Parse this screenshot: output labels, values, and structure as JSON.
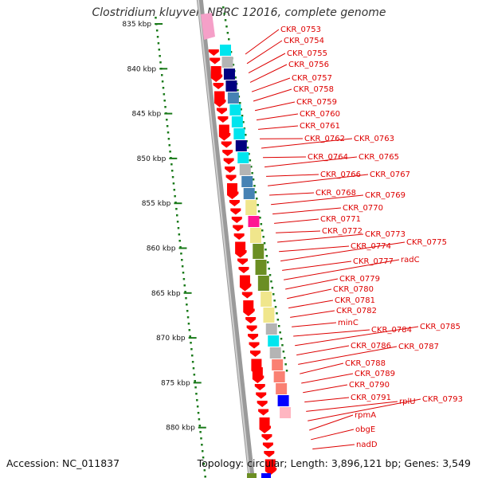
{
  "title": "Clostridium kluyveri NBRC 12016, complete genome",
  "accession_text": "Accession: NC_011837",
  "topology_text": "Topology: circular; Length: 3,896,121 bp; Genes: 3,549",
  "colors": {
    "backbone": "#9a9a9a",
    "cds_red": "#ff0000",
    "tick_green": "#1a7a1a",
    "label_red": "#dd0000",
    "cog_cyan": "#00e5ee",
    "cog_navy": "#000080",
    "cog_gray": "#b4b4b4",
    "cog_steel": "#4682b4",
    "cog_khaki": "#f0e68c",
    "cog_olive": "#6b8e23",
    "cog_salmon": "#fa8072",
    "cog_pink": "#ff1493",
    "cog_blue": "#0000ff",
    "cog_lightpink": "#ffb6c1"
  },
  "scale_ticks": [
    "835 kbp",
    "840 kbp",
    "845 kbp",
    "850 kbp",
    "855 kbp",
    "860 kbp",
    "865 kbp",
    "870 kbp",
    "875 kbp",
    "880 kbp"
  ],
  "gene_labels": [
    "CKR_0753",
    "CKR_0754",
    "CKR_0755",
    "CKR_0756",
    "CKR_0757",
    "CKR_0758",
    "CKR_0759",
    "CKR_0760",
    "CKR_0761",
    "CKR_0762",
    "CKR_0763",
    "CKR_0764",
    "CKR_0765",
    "CKR_0766",
    "CKR_0767",
    "CKR_0768",
    "CKR_0769",
    "CKR_0770",
    "CKR_0771",
    "CKR_0772",
    "CKR_0773",
    "CKR_0774",
    "CKR_0775",
    "CKR_0777",
    "radC",
    "CKR_0779",
    "CKR_0780",
    "CKR_0781",
    "CKR_0782",
    "minC",
    "CKR_0784",
    "CKR_0785",
    "CKR_0786",
    "CKR_0787",
    "CKR_0788",
    "CKR_0789",
    "CKR_0790",
    "CKR_0791",
    "rplU",
    "CKR_0793",
    "rpmA",
    "obgE",
    "nadD"
  ]
}
